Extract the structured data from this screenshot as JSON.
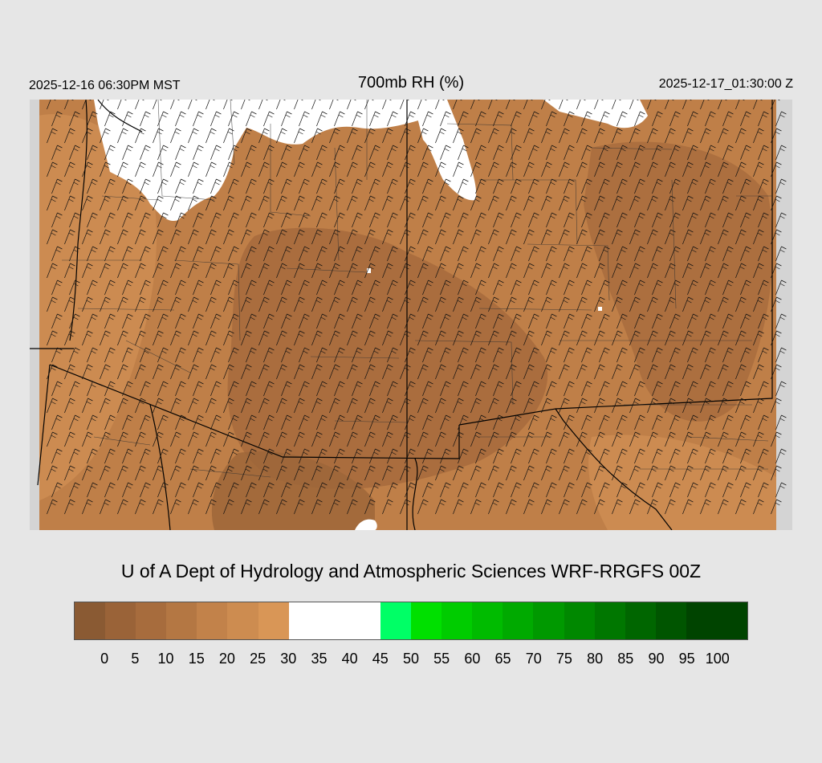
{
  "header": {
    "valid_local": "2025-12-16 06:30PM MST",
    "title": "700mb RH (%)",
    "valid_utc": "2025-12-17_01:30:00 Z"
  },
  "credit": "U of A Dept of Hydrology and Atmospheric Sciences WRF-RRGFS 00Z",
  "colorbar": {
    "ticks": [
      "0",
      "5",
      "10",
      "15",
      "20",
      "25",
      "30",
      "35",
      "40",
      "45",
      "50",
      "55",
      "60",
      "65",
      "70",
      "75",
      "80",
      "85",
      "90",
      "95",
      "100"
    ],
    "colors": [
      "#8a5a33",
      "#9a6338",
      "#a76c3d",
      "#b47743",
      "#c2824a",
      "#cd8c50",
      "#d99656",
      "#ffffff",
      "#ffffff",
      "#ffffff",
      "#00ff66",
      "#00e000",
      "#00cc00",
      "#00bb00",
      "#00aa00",
      "#009900",
      "#008800",
      "#007700",
      "#006600",
      "#005500",
      "#004400"
    ]
  },
  "map": {
    "field": "700mb RH",
    "colors": {
      "dry_dark": "#9a6338",
      "dry_mid": "#b47743",
      "dry_light": "#cd8c50",
      "moist": "#ffffff",
      "outside": "#d4d4d4",
      "borders": "#000000"
    }
  }
}
